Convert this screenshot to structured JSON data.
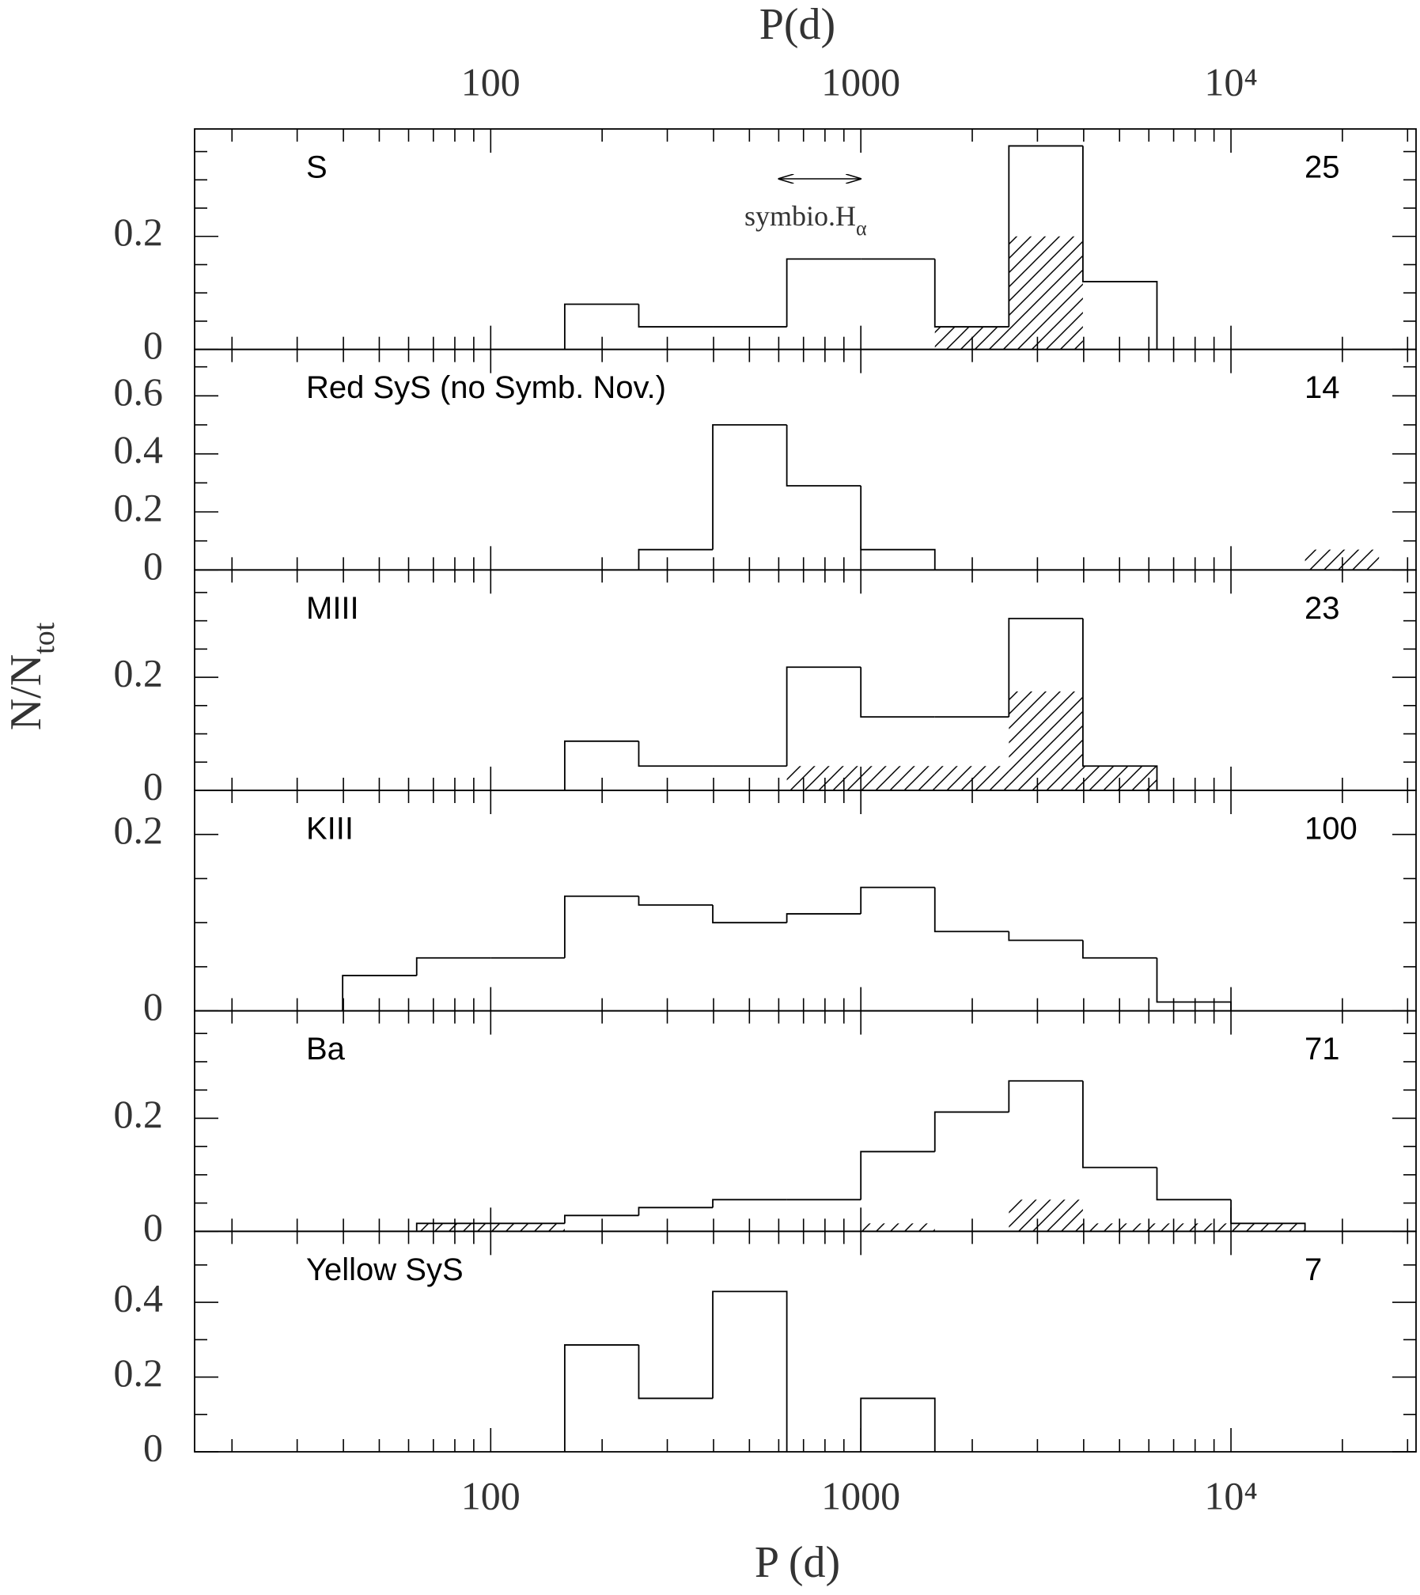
{
  "figure": {
    "xlabel_top": "P(d)",
    "xlabel": "P (d)",
    "ylabel": "N/N",
    "ylabel_sub": "tot",
    "log_x": true,
    "xlim": [
      15.85,
      31623
    ],
    "xticks": [
      100,
      1000,
      {
        "value": 10000,
        "label": "10⁴"
      }
    ],
    "xminorticks": [
      20,
      30,
      40,
      50,
      60,
      70,
      80,
      90,
      200,
      300,
      400,
      500,
      600,
      700,
      800,
      900,
      2000,
      3000,
      4000,
      5000,
      6000,
      7000,
      8000,
      9000,
      20000,
      30000
    ]
  },
  "chart_data": [
    {
      "type": "histogram",
      "label": "S",
      "n": 25,
      "ylim": [
        0,
        0.39
      ],
      "yticks": [
        0,
        0.2
      ],
      "yminorticks": [
        0.05,
        0.1,
        0.15,
        0.25,
        0.3,
        0.35
      ],
      "bins": [
        39.81,
        63.1,
        100,
        158.5,
        251.2,
        398.1,
        631,
        1000,
        1584.9,
        2511.9,
        3981.1,
        6309.6,
        10000,
        15848.9,
        25118.9
      ],
      "values": [
        0,
        0,
        0,
        0.08,
        0.04,
        0.04,
        0.16,
        0.16,
        0.04,
        0.36,
        0.12,
        0,
        0,
        0
      ],
      "hatched_values": [
        0,
        0,
        0,
        0,
        0,
        0,
        0,
        0,
        0.04,
        0.2,
        0,
        0,
        0,
        0
      ],
      "annotation": {
        "text": "symbio.H",
        "sub": "α",
        "x": [
          600,
          1000
        ]
      }
    },
    {
      "type": "histogram",
      "label": "Red SyS (no Symb. Nov.)",
      "n": 14,
      "ylim": [
        0,
        0.76
      ],
      "yticks": [
        0,
        0.2,
        0.4,
        0.6
      ],
      "yminorticks": [
        0.1,
        0.3,
        0.5,
        0.7
      ],
      "bins": [
        39.81,
        63.1,
        100,
        158.5,
        251.2,
        398.1,
        631,
        1000,
        1584.9,
        2511.9,
        3981.1,
        6309.6,
        10000,
        15848.9,
        25118.9
      ],
      "values": [
        0,
        0,
        0,
        0,
        0.07,
        0.5,
        0.29,
        0.07,
        0,
        0,
        0,
        0,
        0,
        0
      ],
      "hatched_values": [
        0,
        0,
        0,
        0,
        0,
        0,
        0,
        0,
        0,
        0,
        0,
        0,
        0,
        0.07
      ]
    },
    {
      "type": "histogram",
      "label": "MIII",
      "n": 23,
      "ylim": [
        0,
        0.39
      ],
      "yticks": [
        0,
        0.2
      ],
      "yminorticks": [
        0.05,
        0.1,
        0.15,
        0.25,
        0.3,
        0.35
      ],
      "bins": [
        39.81,
        63.1,
        100,
        158.5,
        251.2,
        398.1,
        631,
        1000,
        1584.9,
        2511.9,
        3981.1,
        6309.6,
        10000,
        15848.9,
        25118.9
      ],
      "values": [
        0,
        0,
        0,
        0.087,
        0.043,
        0.043,
        0.218,
        0.13,
        0.13,
        0.304,
        0.043,
        0,
        0,
        0
      ],
      "hatched_values": [
        0,
        0,
        0,
        0,
        0,
        0,
        0.043,
        0.043,
        0.043,
        0.175,
        0.043,
        0,
        0,
        0
      ]
    },
    {
      "type": "histogram",
      "label": "KIII",
      "n": 100,
      "ylim": [
        0,
        0.25
      ],
      "yticks": [
        0,
        0.2
      ],
      "yminorticks": [
        0.05,
        0.1,
        0.15
      ],
      "bins": [
        39.81,
        63.1,
        100,
        158.5,
        251.2,
        398.1,
        631,
        1000,
        1584.9,
        2511.9,
        3981.1,
        6309.6,
        10000,
        15848.9,
        25118.9
      ],
      "values": [
        0.04,
        0.06,
        0.06,
        0.13,
        0.12,
        0.1,
        0.11,
        0.14,
        0.09,
        0.08,
        0.06,
        0.01,
        0,
        0
      ],
      "hatched_values": [
        0,
        0,
        0,
        0,
        0,
        0,
        0,
        0,
        0,
        0,
        0,
        0,
        0,
        0
      ]
    },
    {
      "type": "histogram",
      "label": "Ba",
      "n": 71,
      "ylim": [
        0,
        0.39
      ],
      "yticks": [
        0,
        0.2
      ],
      "yminorticks": [
        0.05,
        0.1,
        0.15,
        0.25,
        0.3,
        0.35
      ],
      "bins": [
        39.81,
        63.1,
        100,
        158.5,
        251.2,
        398.1,
        631,
        1000,
        1584.9,
        2511.9,
        3981.1,
        6309.6,
        10000,
        15848.9,
        25118.9
      ],
      "values": [
        0,
        0.014,
        0.014,
        0.028,
        0.042,
        0.056,
        0.056,
        0.141,
        0.211,
        0.266,
        0.113,
        0.056,
        0.014,
        0
      ],
      "hatched_values": [
        0,
        0.014,
        0.014,
        0,
        0,
        0,
        0,
        0.014,
        0,
        0.056,
        0.014,
        0.014,
        0.014,
        0
      ]
    },
    {
      "type": "histogram",
      "label": "Yellow SyS",
      "n": 7,
      "ylim": [
        0,
        0.59
      ],
      "yticks": [
        0,
        0.2,
        0.4
      ],
      "yminorticks": [
        0.1,
        0.3,
        0.5
      ],
      "bins": [
        39.81,
        63.1,
        100,
        158.5,
        251.2,
        398.1,
        631,
        1000,
        1584.9,
        2511.9,
        3981.1,
        6309.6,
        10000,
        15848.9,
        25118.9
      ],
      "values": [
        0,
        0,
        0,
        0.286,
        0.143,
        0.429,
        0,
        0.143,
        0,
        0,
        0,
        0,
        0,
        0
      ],
      "hatched_values": [
        0,
        0,
        0,
        0,
        0,
        0,
        0,
        0,
        0,
        0,
        0,
        0,
        0,
        0
      ]
    }
  ]
}
